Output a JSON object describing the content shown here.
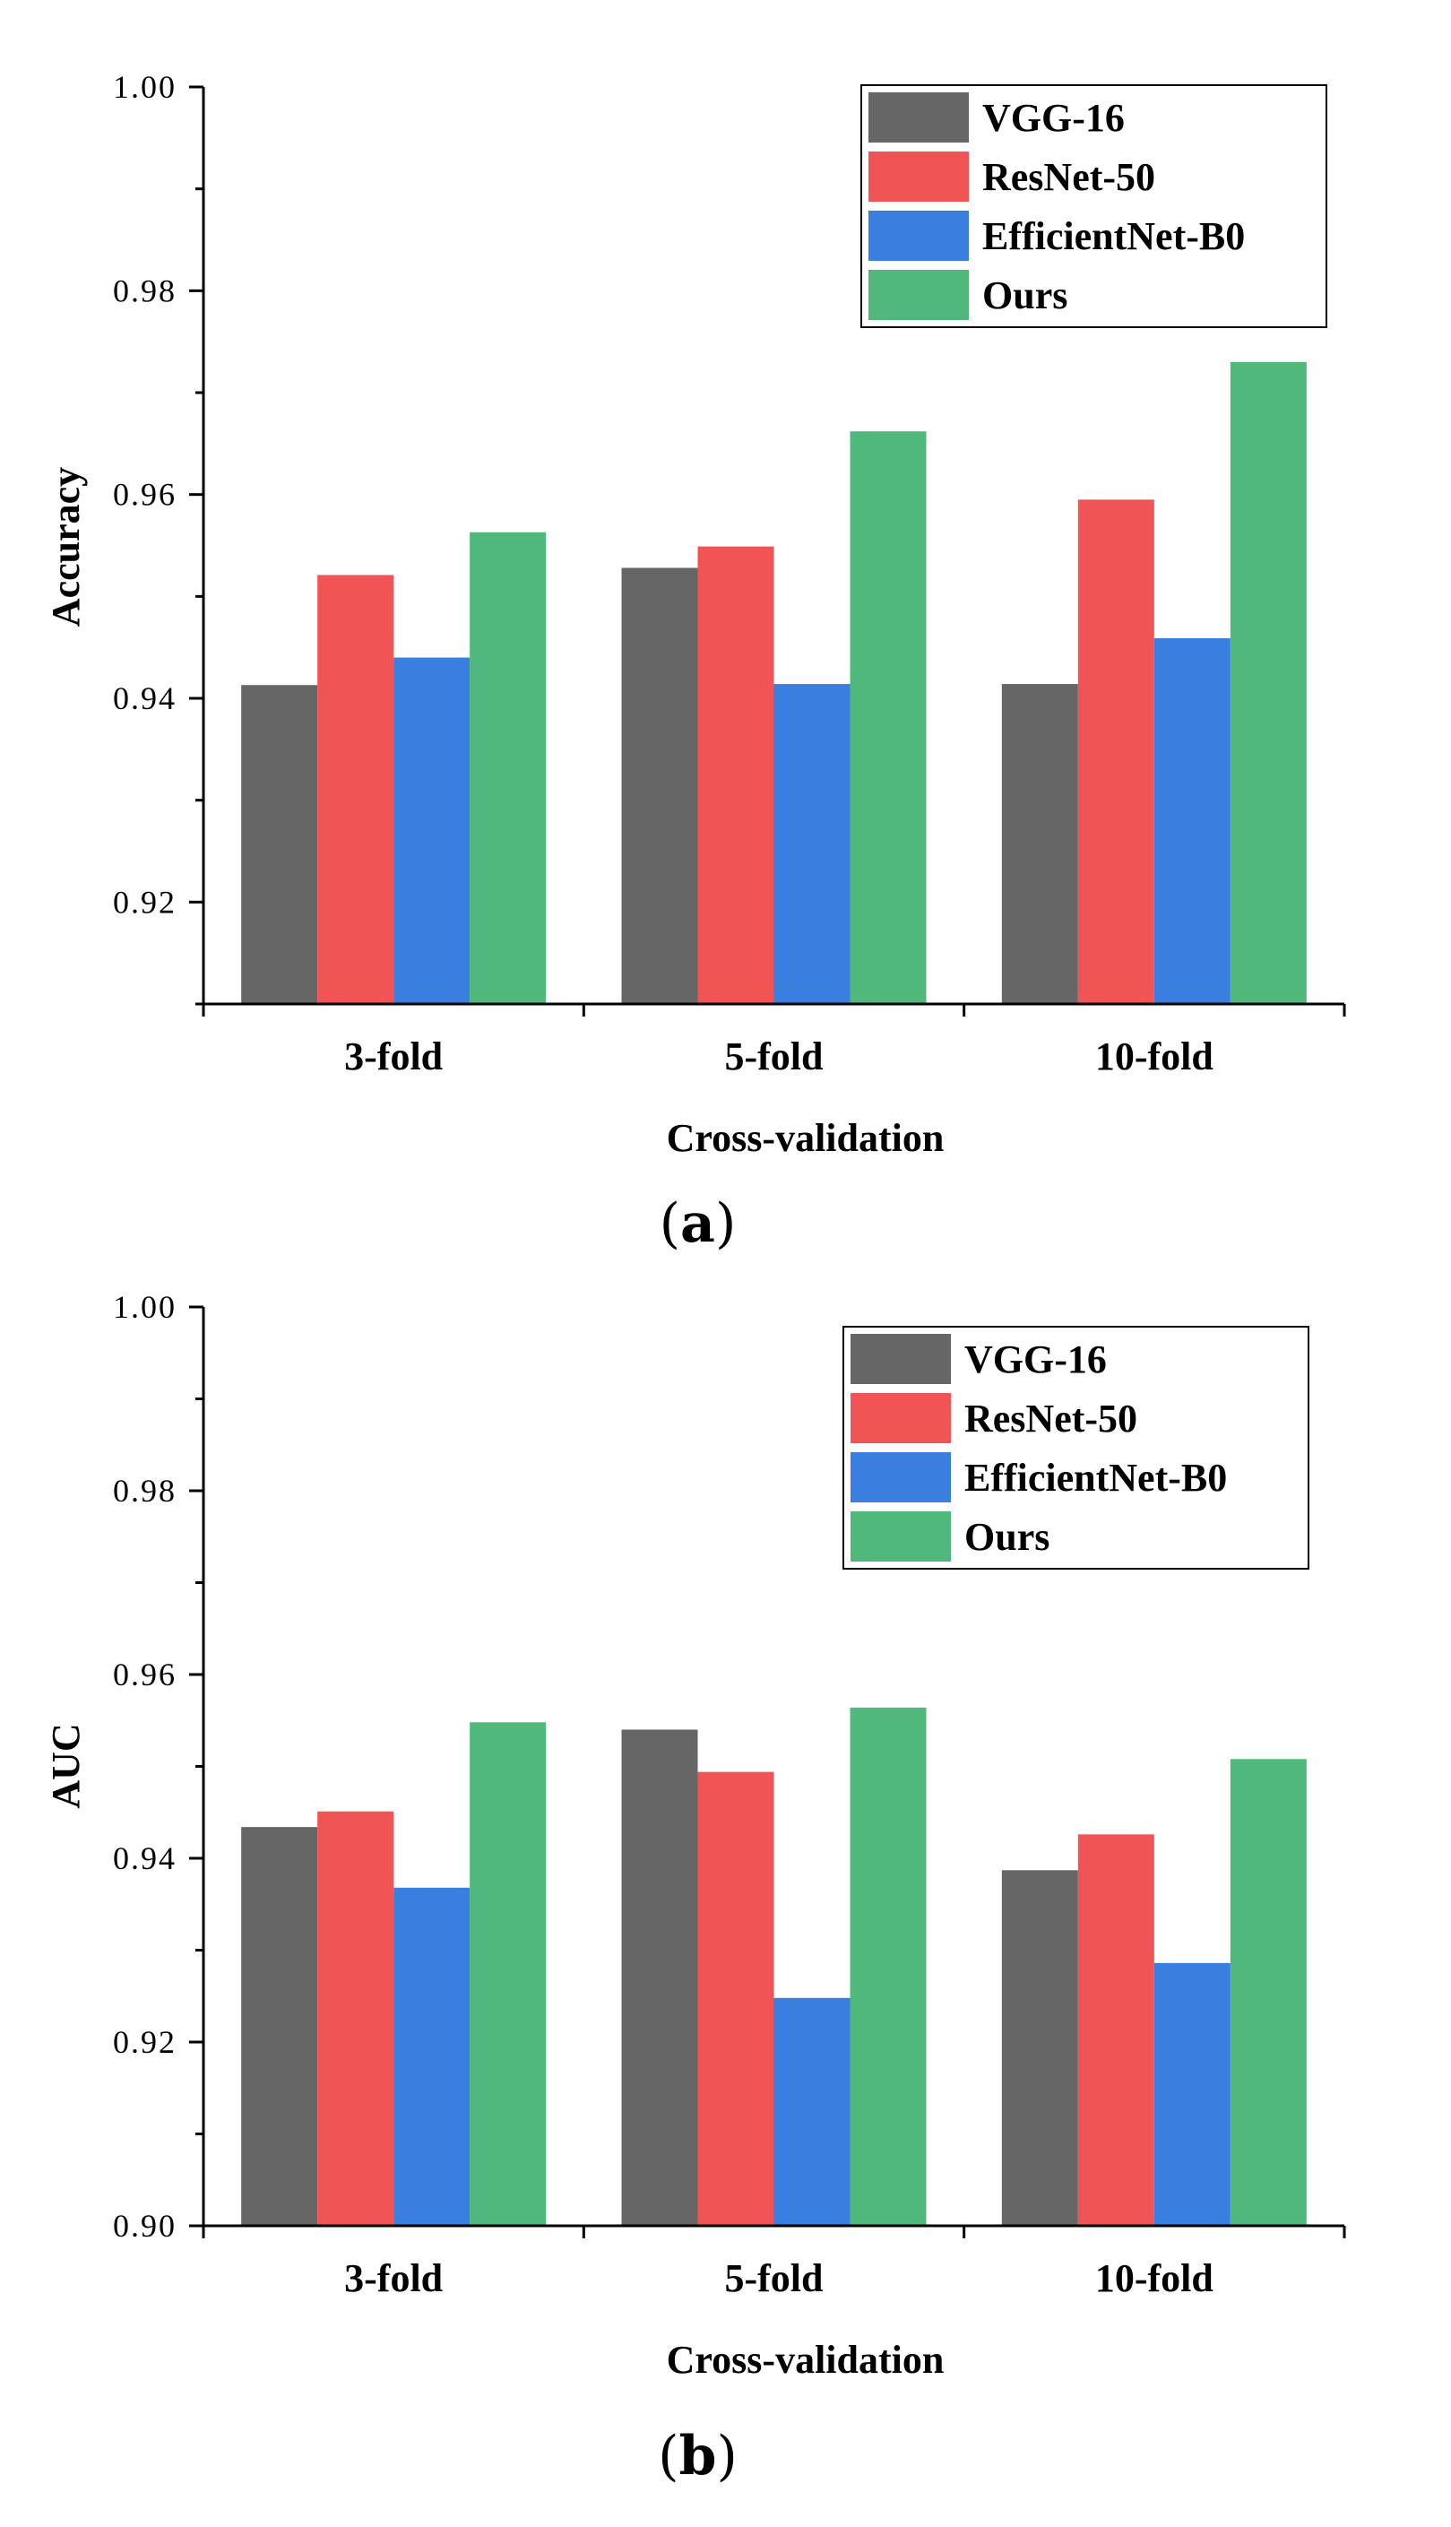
{
  "chart_data": [
    {
      "type": "bar",
      "panel_label": "a",
      "categories": [
        "3-fold",
        "5-fold",
        "10-fold"
      ],
      "series": [
        {
          "name": "VGG-16",
          "color": "#666666",
          "values": [
            0.9413,
            0.9528,
            0.9414
          ]
        },
        {
          "name": "ResNet-50",
          "color": "#F05454",
          "values": [
            0.9521,
            0.9549,
            0.9595
          ]
        },
        {
          "name": "EfficientNet-B0",
          "color": "#3A7FE0",
          "values": [
            0.944,
            0.9414,
            0.9459
          ]
        },
        {
          "name": "Ours",
          "color": "#4FB87A",
          "values": [
            0.9563,
            0.9662,
            0.973
          ]
        }
      ],
      "xlabel": "Cross-validation",
      "ylabel": "Accuracy",
      "ylim": [
        0.91,
        1.0
      ],
      "yticks": [
        0.92,
        0.94,
        0.96,
        0.98,
        1.0
      ],
      "ytick_labels": [
        "0.92",
        "0.94",
        "0.96",
        "0.98",
        "1.00"
      ],
      "legend_position": "top-right",
      "grid": false
    },
    {
      "type": "bar",
      "panel_label": "b",
      "categories": [
        "3-fold",
        "5-fold",
        "10-fold"
      ],
      "series": [
        {
          "name": "VGG-16",
          "color": "#666666",
          "values": [
            0.9434,
            0.954,
            0.9387
          ]
        },
        {
          "name": "ResNet-50",
          "color": "#F05454",
          "values": [
            0.9451,
            0.9494,
            0.9426
          ]
        },
        {
          "name": "EfficientNet-B0",
          "color": "#3A7FE0",
          "values": [
            0.9368,
            0.9248,
            0.9286
          ]
        },
        {
          "name": "Ours",
          "color": "#4FB87A",
          "values": [
            0.9548,
            0.9564,
            0.9508
          ]
        }
      ],
      "xlabel": "Cross-validation",
      "ylabel": "AUC",
      "ylim": [
        0.9,
        1.0
      ],
      "yticks": [
        0.9,
        0.92,
        0.94,
        0.96,
        0.98,
        1.0
      ],
      "ytick_labels": [
        "0.90",
        "0.92",
        "0.94",
        "0.96",
        "0.98",
        "1.00"
      ],
      "legend_position": "top-right",
      "grid": false
    }
  ]
}
